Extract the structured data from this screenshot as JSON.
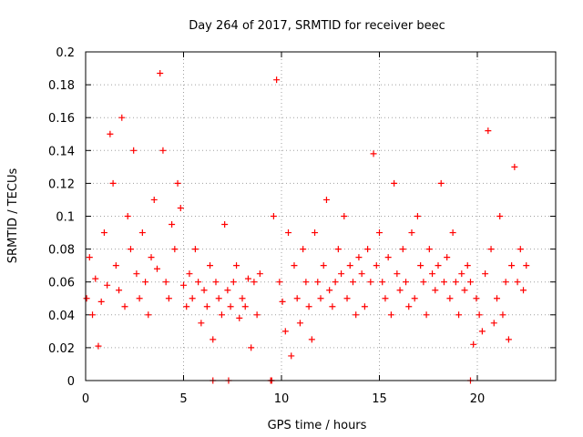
{
  "chart_data": {
    "type": "scatter",
    "title": "Day 264 of 2017, SRMTID for receiver beec",
    "xlabel": "GPS time / hours",
    "ylabel": "SRMTID / TECUs",
    "xlim": [
      0,
      24
    ],
    "ylim": [
      0,
      0.2
    ],
    "x_ticks": [
      0,
      5,
      10,
      15,
      20
    ],
    "x_tick_labels": [
      "0",
      "5",
      "10",
      "15",
      "20"
    ],
    "y_ticks": [
      0,
      0.02,
      0.04,
      0.06,
      0.08,
      0.1,
      0.12,
      0.14,
      0.16,
      0.18,
      0.2
    ],
    "y_tick_labels": [
      "0",
      "0.02",
      "0.04",
      "0.06",
      "0.08",
      "0.1",
      "0.12",
      "0.14",
      "0.16",
      "0.18",
      "0.2"
    ],
    "grid": true,
    "marker": "+",
    "series_color": "#ff0000",
    "grid_color": "#a0a0a0",
    "series": [
      {
        "name": "SRMTID",
        "x": [
          0.05,
          0.2,
          0.35,
          0.5,
          0.65,
          0.8,
          0.95,
          1.1,
          1.25,
          1.4,
          1.55,
          1.7,
          1.85,
          2.0,
          2.15,
          2.3,
          2.45,
          2.6,
          2.75,
          2.9,
          3.05,
          3.2,
          3.35,
          3.5,
          3.65,
          3.8,
          3.95,
          4.1,
          4.25,
          4.4,
          4.55,
          4.7,
          4.85,
          5.0,
          5.15,
          5.3,
          5.45,
          5.6,
          5.75,
          5.9,
          6.05,
          6.2,
          6.35,
          6.5,
          6.65,
          6.8,
          6.95,
          7.1,
          7.25,
          7.4,
          7.55,
          7.7,
          7.85,
          8.0,
          8.15,
          8.3,
          8.45,
          8.6,
          8.75,
          8.9,
          9.6,
          9.75,
          9.9,
          10.05,
          10.2,
          10.35,
          10.5,
          10.65,
          10.8,
          10.95,
          11.1,
          11.25,
          11.4,
          11.55,
          11.7,
          11.85,
          12.0,
          12.15,
          12.3,
          12.45,
          12.6,
          12.75,
          12.9,
          13.05,
          13.2,
          13.35,
          13.5,
          13.65,
          13.8,
          13.95,
          14.1,
          14.25,
          14.4,
          14.55,
          14.7,
          14.85,
          15.0,
          15.15,
          15.3,
          15.45,
          15.6,
          15.75,
          15.9,
          16.05,
          16.2,
          16.35,
          16.5,
          16.65,
          16.8,
          16.95,
          17.1,
          17.25,
          17.4,
          17.55,
          17.7,
          17.85,
          18.0,
          18.15,
          18.3,
          18.45,
          18.6,
          18.75,
          18.9,
          19.05,
          19.2,
          19.35,
          19.5,
          19.65,
          19.8,
          19.95,
          20.1,
          20.25,
          20.4,
          20.55,
          20.7,
          20.85,
          21.0,
          21.15,
          21.3,
          21.45,
          21.6,
          21.75,
          21.9,
          22.05,
          22.2,
          22.35,
          22.5,
          6.5,
          7.3,
          9.45,
          9.5,
          19.65
        ],
        "y": [
          0.05,
          0.075,
          0.04,
          0.062,
          0.021,
          0.048,
          0.09,
          0.058,
          0.15,
          0.12,
          0.07,
          0.055,
          0.16,
          0.045,
          0.1,
          0.08,
          0.14,
          0.065,
          0.05,
          0.09,
          0.06,
          0.04,
          0.075,
          0.11,
          0.068,
          0.187,
          0.14,
          0.06,
          0.05,
          0.095,
          0.08,
          0.12,
          0.105,
          0.058,
          0.045,
          0.065,
          0.05,
          0.08,
          0.06,
          0.035,
          0.055,
          0.045,
          0.07,
          0.025,
          0.06,
          0.05,
          0.04,
          0.095,
          0.055,
          0.045,
          0.06,
          0.07,
          0.038,
          0.05,
          0.045,
          0.062,
          0.02,
          0.06,
          0.04,
          0.065,
          0.1,
          0.183,
          0.06,
          0.048,
          0.03,
          0.09,
          0.015,
          0.07,
          0.05,
          0.035,
          0.08,
          0.06,
          0.045,
          0.025,
          0.09,
          0.06,
          0.05,
          0.07,
          0.11,
          0.055,
          0.045,
          0.06,
          0.08,
          0.065,
          0.1,
          0.05,
          0.07,
          0.06,
          0.04,
          0.075,
          0.065,
          0.045,
          0.08,
          0.06,
          0.138,
          0.07,
          0.09,
          0.06,
          0.05,
          0.075,
          0.04,
          0.12,
          0.065,
          0.055,
          0.08,
          0.06,
          0.045,
          0.09,
          0.05,
          0.1,
          0.07,
          0.06,
          0.04,
          0.08,
          0.065,
          0.055,
          0.07,
          0.12,
          0.06,
          0.075,
          0.05,
          0.09,
          0.06,
          0.04,
          0.065,
          0.055,
          0.07,
          0.06,
          0.022,
          0.05,
          0.04,
          0.03,
          0.065,
          0.152,
          0.08,
          0.035,
          0.05,
          0.1,
          0.04,
          0.06,
          0.025,
          0.07,
          0.13,
          0.06,
          0.08,
          0.055,
          0.07,
          0,
          0,
          0,
          0,
          0
        ]
      }
    ]
  }
}
